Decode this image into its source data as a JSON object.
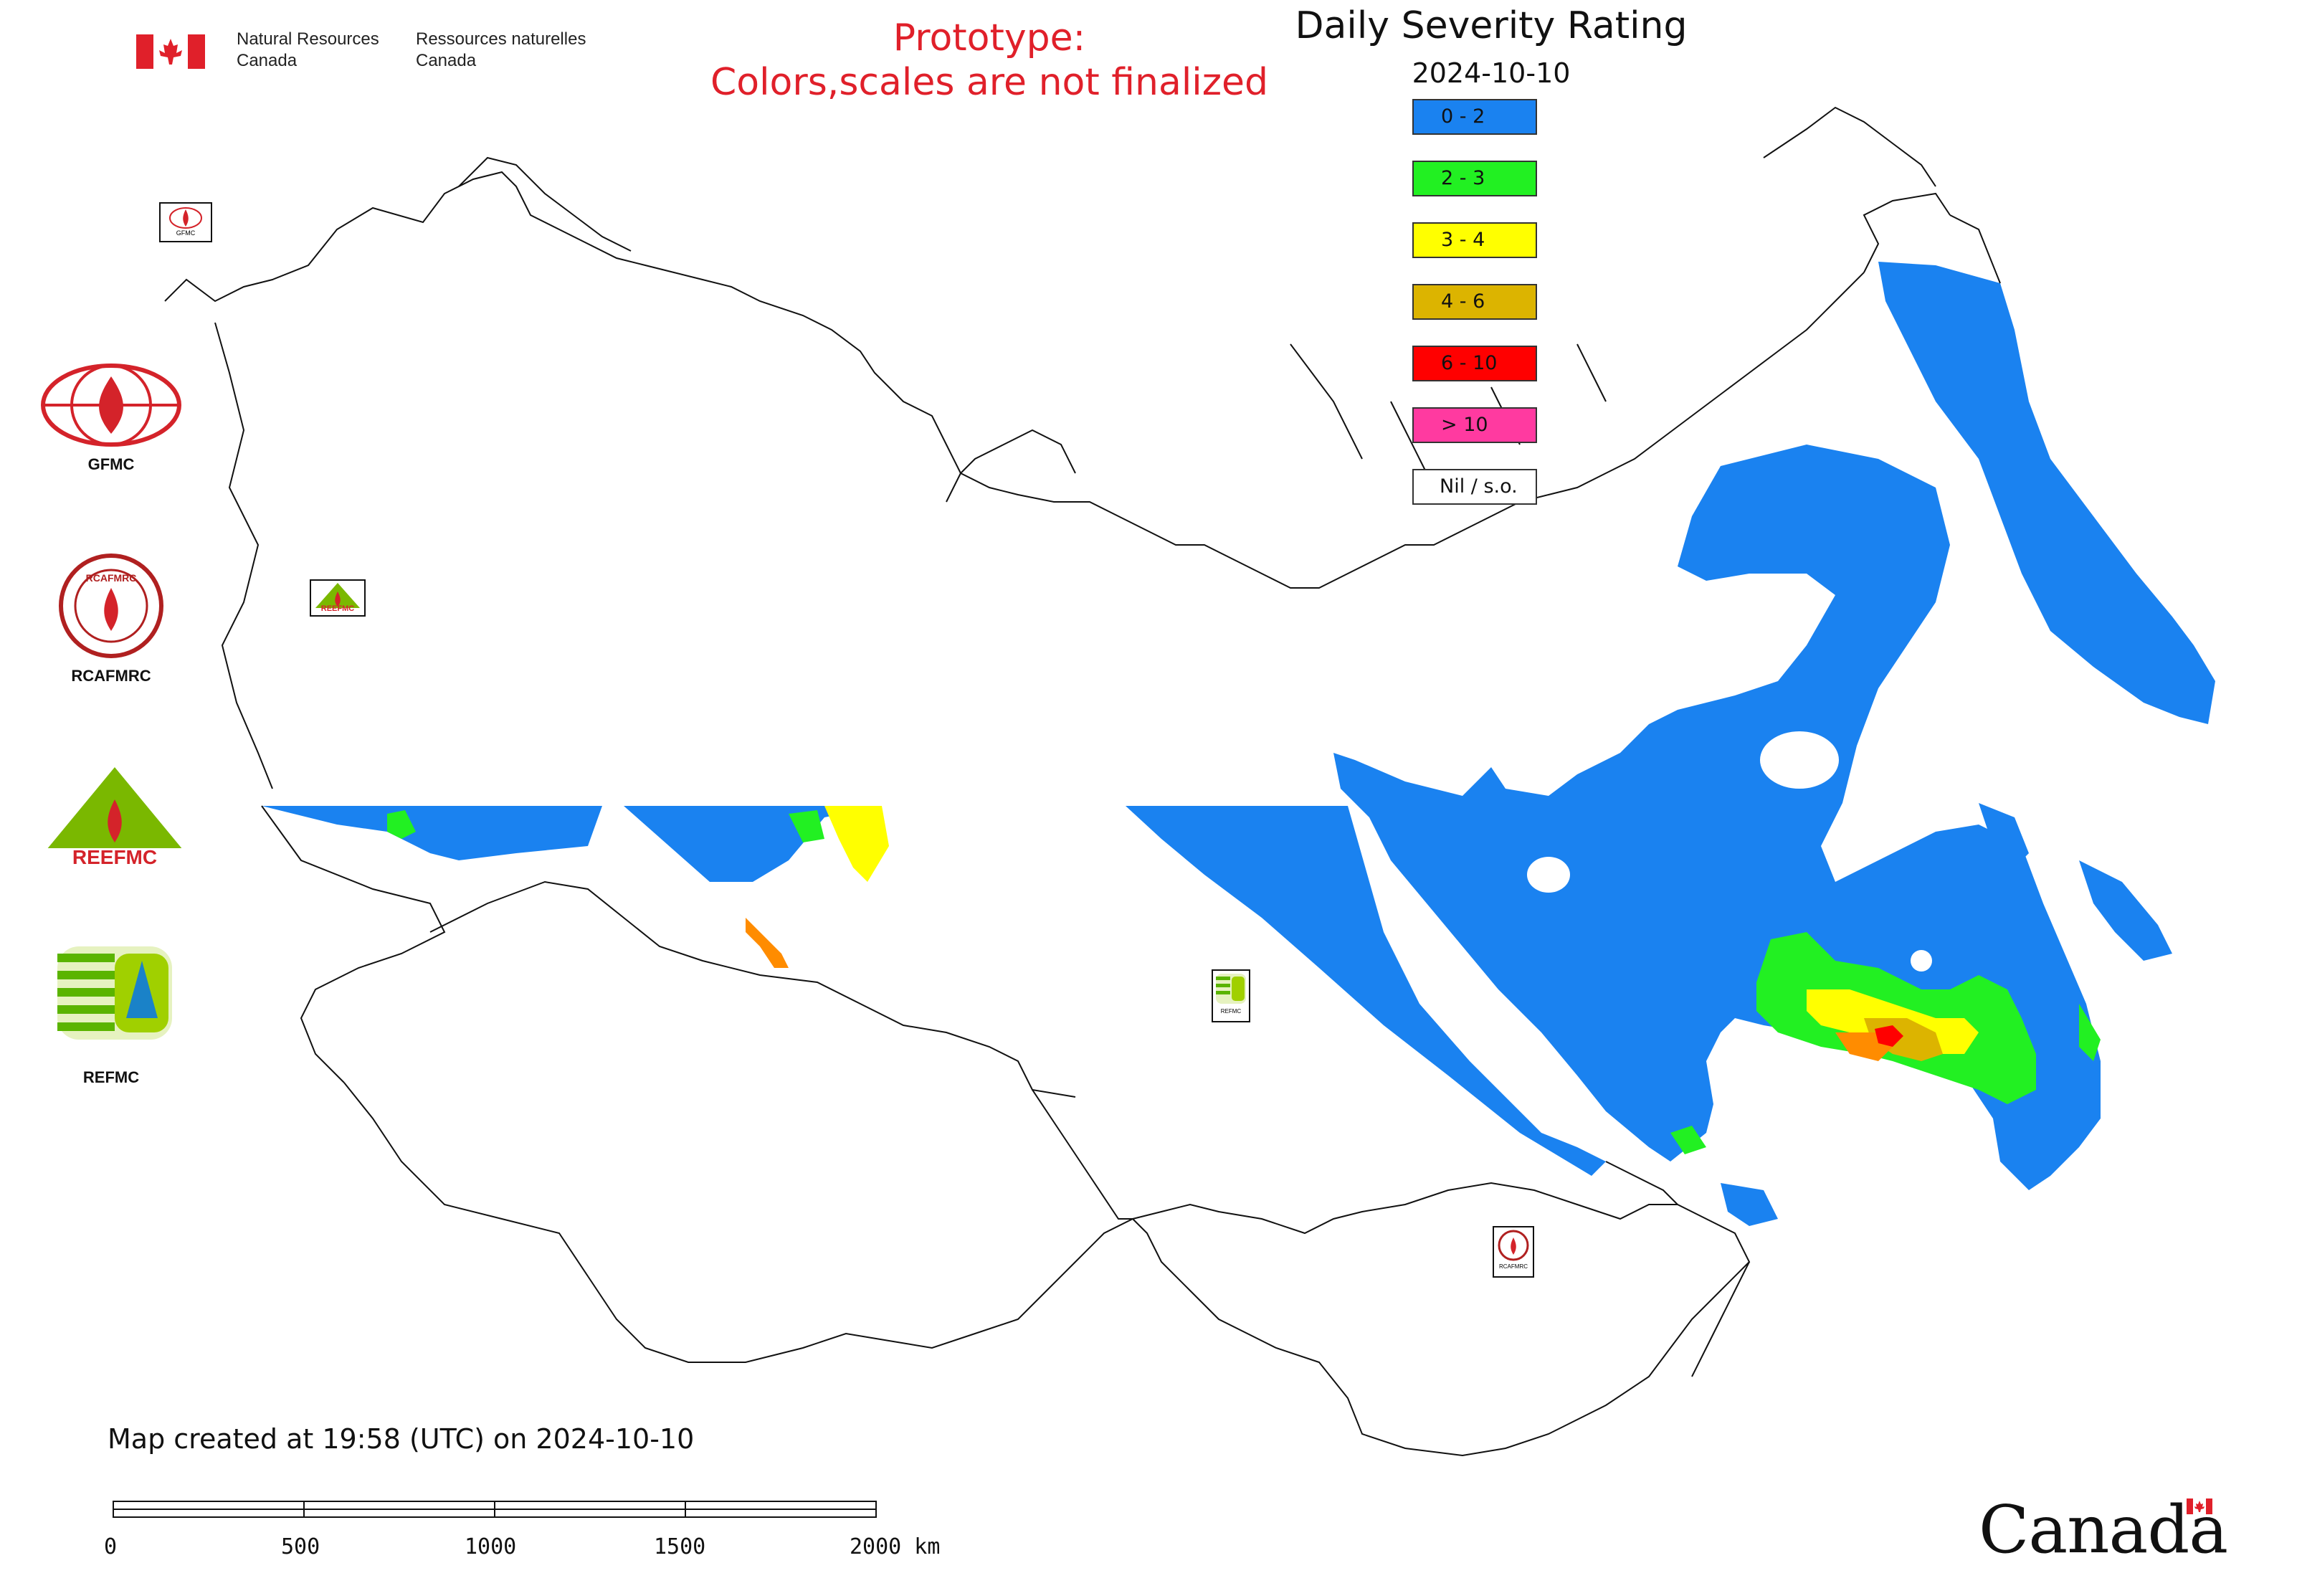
{
  "header": {
    "nrcan_en": [
      "Natural Resources",
      "Canada"
    ],
    "nrcan_fr": [
      "Ressources naturelles",
      "Canada"
    ],
    "prototype_line1": "Prototype:",
    "prototype_line2": "Colors,scales are not finalized"
  },
  "map": {
    "title": "Daily Severity Rating",
    "date": "2024-10-10",
    "legend": [
      {
        "label": "0 - 2",
        "color": "#1a82f0"
      },
      {
        "label": "2 - 3",
        "color": "#22f022"
      },
      {
        "label": "3 - 4",
        "color": "#ffff00"
      },
      {
        "label": "4 - 6",
        "color": "#dcb400"
      },
      {
        "label": "6 - 10",
        "color": "#ff0000"
      },
      {
        "label": "> 10",
        "color": "#ff3aa0"
      },
      {
        "label": "Nil / s.o.",
        "color": "#ffffff"
      }
    ],
    "created": "Map created at 19:58 (UTC) on 2024-10-10",
    "scale_labels": [
      "0",
      "500",
      "1000",
      "1500",
      "2000 km"
    ]
  },
  "logos": [
    {
      "name": "GFMC",
      "label": "GFMC"
    },
    {
      "name": "RCAFMRC",
      "label": "RCAFMRC",
      "ring_text": "RCAFMRC"
    },
    {
      "name": "REEFMC",
      "label": "REEFMC"
    },
    {
      "name": "REFMC",
      "label": "REFMC"
    }
  ],
  "map_markers": [
    "GFMC",
    "REEFMC",
    "REFMC",
    "RCAFMRC"
  ],
  "footer": {
    "wordmark": "Canada"
  }
}
